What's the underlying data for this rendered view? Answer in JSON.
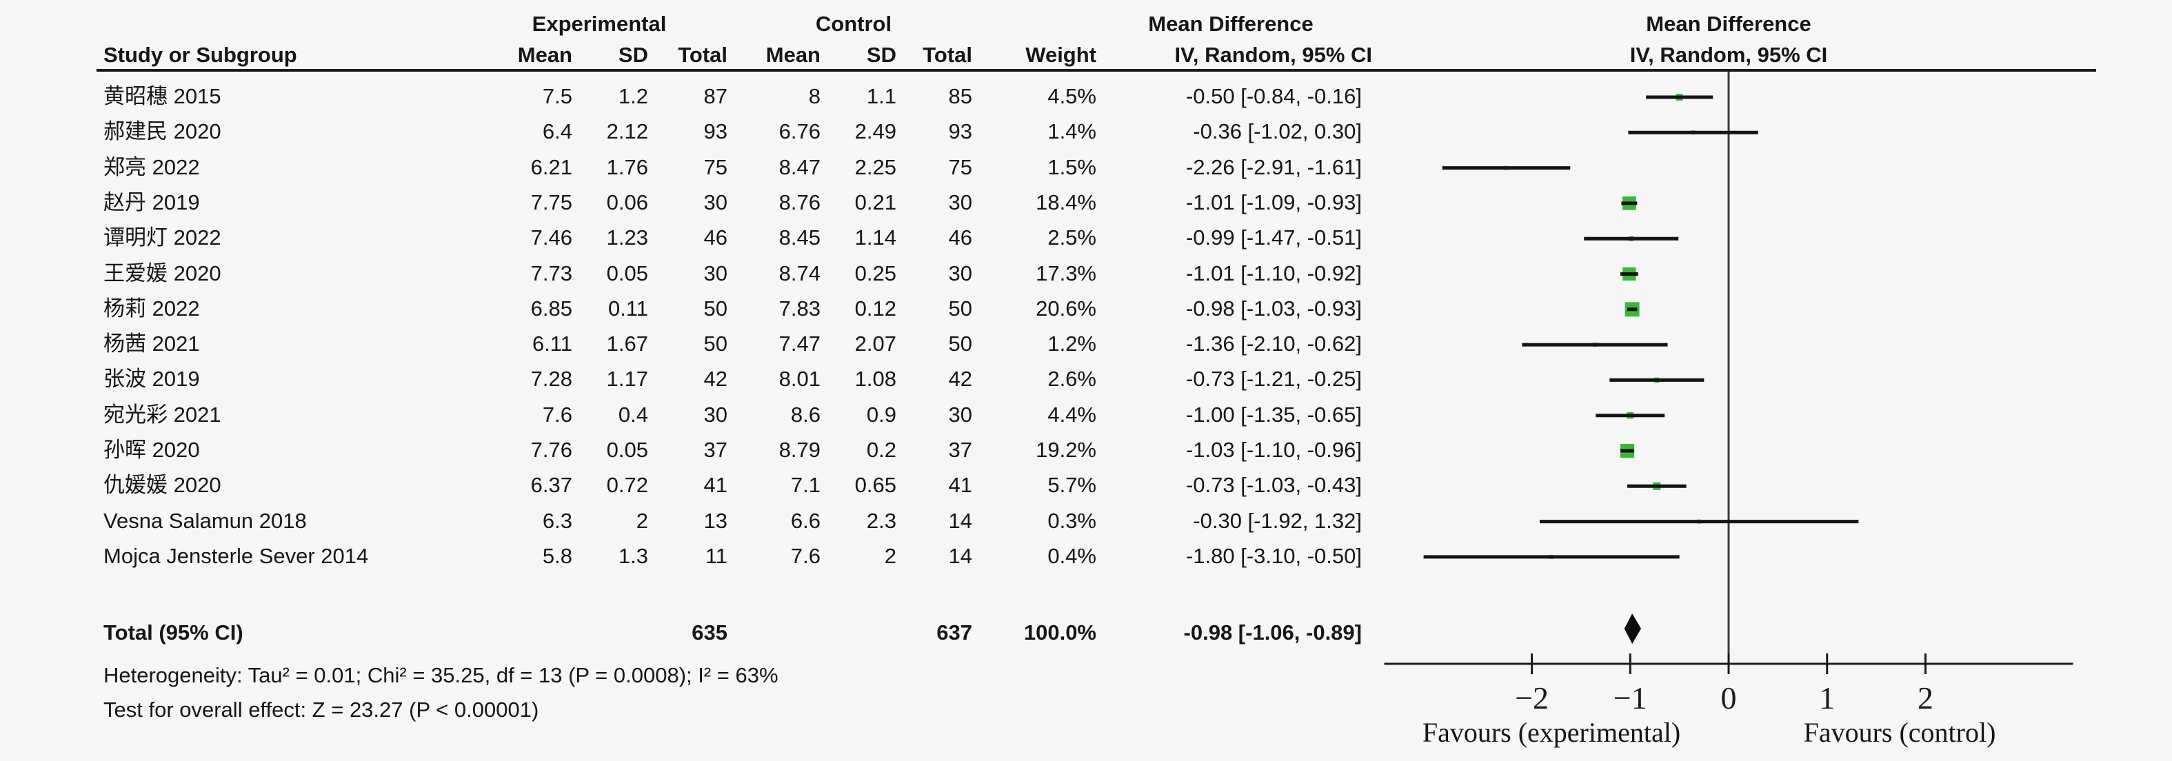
{
  "colors": {
    "background": "#f5f6f5",
    "marker_green": "#3CB53C",
    "marker_gray": "#8a8a8a",
    "ci_line": "#141414",
    "diamond": "#0d0d0d",
    "axis": "#1a1a1a"
  },
  "header": {
    "experimental": "Experimental",
    "control": "Control",
    "mean_difference_text_col": "Mean Difference",
    "mean_difference_plot_col": "Mean Difference",
    "study_or_subgroup": "Study or Subgroup",
    "mean": "Mean",
    "sd": "SD",
    "total": "Total",
    "mean2": "Mean",
    "sd2": "SD",
    "total2": "Total",
    "weight": "Weight",
    "ci_method_text_col": "IV, Random, 95% CI",
    "ci_method_plot_col": "IV, Random, 95% CI"
  },
  "rows": [
    {
      "study": "黄昭穗 2015",
      "exp_mean": "7.5",
      "exp_sd": "1.2",
      "exp_total": "87",
      "ctrl_mean": "8",
      "ctrl_sd": "1.1",
      "ctrl_total": "85",
      "weight": "4.5%",
      "ci_text": "-0.50 [-0.84, -0.16]",
      "est": -0.5,
      "lo": -0.84,
      "hi": -0.16,
      "w": 4.5
    },
    {
      "study": "郝建民 2020",
      "exp_mean": "6.4",
      "exp_sd": "2.12",
      "exp_total": "93",
      "ctrl_mean": "6.76",
      "ctrl_sd": "2.49",
      "ctrl_total": "93",
      "weight": "1.4%",
      "ci_text": "-0.36 [-1.02, 0.30]",
      "est": -0.36,
      "lo": -1.02,
      "hi": 0.3,
      "w": 1.4
    },
    {
      "study": "郑亮 2022",
      "exp_mean": "6.21",
      "exp_sd": "1.76",
      "exp_total": "75",
      "ctrl_mean": "8.47",
      "ctrl_sd": "2.25",
      "ctrl_total": "75",
      "weight": "1.5%",
      "ci_text": "-2.26 [-2.91, -1.61]",
      "est": -2.26,
      "lo": -2.91,
      "hi": -1.61,
      "w": 1.5
    },
    {
      "study": "赵丹 2019",
      "exp_mean": "7.75",
      "exp_sd": "0.06",
      "exp_total": "30",
      "ctrl_mean": "8.76",
      "ctrl_sd": "0.21",
      "ctrl_total": "30",
      "weight": "18.4%",
      "ci_text": "-1.01 [-1.09, -0.93]",
      "est": -1.01,
      "lo": -1.09,
      "hi": -0.93,
      "w": 18.4
    },
    {
      "study": "谭明灯 2022",
      "exp_mean": "7.46",
      "exp_sd": "1.23",
      "exp_total": "46",
      "ctrl_mean": "8.45",
      "ctrl_sd": "1.14",
      "ctrl_total": "46",
      "weight": "2.5%",
      "ci_text": "-0.99 [-1.47, -0.51]",
      "est": -0.99,
      "lo": -1.47,
      "hi": -0.51,
      "w": 2.5
    },
    {
      "study": "王爱媛 2020",
      "exp_mean": "7.73",
      "exp_sd": "0.05",
      "exp_total": "30",
      "ctrl_mean": "8.74",
      "ctrl_sd": "0.25",
      "ctrl_total": "30",
      "weight": "17.3%",
      "ci_text": "-1.01 [-1.10, -0.92]",
      "est": -1.01,
      "lo": -1.1,
      "hi": -0.92,
      "w": 17.3
    },
    {
      "study": "杨莉 2022",
      "exp_mean": "6.85",
      "exp_sd": "0.11",
      "exp_total": "50",
      "ctrl_mean": "7.83",
      "ctrl_sd": "0.12",
      "ctrl_total": "50",
      "weight": "20.6%",
      "ci_text": "-0.98 [-1.03, -0.93]",
      "est": -0.98,
      "lo": -1.03,
      "hi": -0.93,
      "w": 20.6
    },
    {
      "study": "杨茜 2021",
      "exp_mean": "6.11",
      "exp_sd": "1.67",
      "exp_total": "50",
      "ctrl_mean": "7.47",
      "ctrl_sd": "2.07",
      "ctrl_total": "50",
      "weight": "1.2%",
      "ci_text": "-1.36 [-2.10, -0.62]",
      "est": -1.36,
      "lo": -2.1,
      "hi": -0.62,
      "w": 1.2
    },
    {
      "study": "张波 2019",
      "exp_mean": "7.28",
      "exp_sd": "1.17",
      "exp_total": "42",
      "ctrl_mean": "8.01",
      "ctrl_sd": "1.08",
      "ctrl_total": "42",
      "weight": "2.6%",
      "ci_text": "-0.73 [-1.21, -0.25]",
      "est": -0.73,
      "lo": -1.21,
      "hi": -0.25,
      "w": 2.6
    },
    {
      "study": "宛光彩 2021",
      "exp_mean": "7.6",
      "exp_sd": "0.4",
      "exp_total": "30",
      "ctrl_mean": "8.6",
      "ctrl_sd": "0.9",
      "ctrl_total": "30",
      "weight": "4.4%",
      "ci_text": "-1.00 [-1.35, -0.65]",
      "est": -1.0,
      "lo": -1.35,
      "hi": -0.65,
      "w": 4.4
    },
    {
      "study": "孙晖 2020",
      "exp_mean": "7.76",
      "exp_sd": "0.05",
      "exp_total": "37",
      "ctrl_mean": "8.79",
      "ctrl_sd": "0.2",
      "ctrl_total": "37",
      "weight": "19.2%",
      "ci_text": "-1.03 [-1.10, -0.96]",
      "est": -1.03,
      "lo": -1.1,
      "hi": -0.96,
      "w": 19.2
    },
    {
      "study": "仇媛媛 2020",
      "exp_mean": "6.37",
      "exp_sd": "0.72",
      "exp_total": "41",
      "ctrl_mean": "7.1",
      "ctrl_sd": "0.65",
      "ctrl_total": "41",
      "weight": "5.7%",
      "ci_text": "-0.73 [-1.03, -0.43]",
      "est": -0.73,
      "lo": -1.03,
      "hi": -0.43,
      "w": 5.7
    },
    {
      "study": "Vesna Salamun 2018",
      "exp_mean": "6.3",
      "exp_sd": "2",
      "exp_total": "13",
      "ctrl_mean": "6.6",
      "ctrl_sd": "2.3",
      "ctrl_total": "14",
      "weight": "0.3%",
      "ci_text": "-0.30 [-1.92, 1.32]",
      "est": -0.3,
      "lo": -1.92,
      "hi": 1.32,
      "w": 0.3
    },
    {
      "study": "Mojca Jensterle Sever 2014",
      "exp_mean": "5.8",
      "exp_sd": "1.3",
      "exp_total": "11",
      "ctrl_mean": "7.6",
      "ctrl_sd": "2",
      "ctrl_total": "14",
      "weight": "0.4%",
      "ci_text": "-1.80 [-3.10, -0.50]",
      "est": -1.8,
      "lo": -3.1,
      "hi": -0.5,
      "w": 0.4
    }
  ],
  "total_row": {
    "label": "Total (95% CI)",
    "exp_total": "635",
    "ctrl_total": "637",
    "weight": "100.0%",
    "ci_text": "-0.98 [-1.06, -0.89]",
    "est": -0.98,
    "lo": -1.06,
    "hi": -0.89
  },
  "footer": {
    "heterogeneity": "Heterogeneity: Tau² = 0.01; Chi² = 35.25, df = 13 (P = 0.0008); I² = 63%",
    "overall_effect": "Test for overall effect: Z = 23.27 (P < 0.00001)"
  },
  "axis": {
    "tick_labels": [
      "−2",
      "−1",
      "0",
      "1",
      "2"
    ],
    "tick_values": [
      -2,
      -1,
      0,
      1,
      2
    ],
    "xlim": [
      -3.5,
      3.5
    ],
    "favours_left": "Favours (experimental)",
    "favours_right": "Favours (control)"
  },
  "chart_data": {
    "type": "scatter",
    "subtype": "forest_plot",
    "title": "Mean Difference",
    "model": "IV, Random, 95% CI",
    "studies": [
      "黄昭穗 2015",
      "郝建民 2020",
      "郑亮 2022",
      "赵丹 2019",
      "谭明灯 2022",
      "王爱媛 2020",
      "杨莉 2022",
      "杨茜 2021",
      "张波 2019",
      "宛光彩 2021",
      "孙晖 2020",
      "仇媛媛 2020",
      "Vesna Salamun 2018",
      "Mojca Jensterle Sever 2014"
    ],
    "mean_difference": [
      -0.5,
      -0.36,
      -2.26,
      -1.01,
      -0.99,
      -1.01,
      -0.98,
      -1.36,
      -0.73,
      -1.0,
      -1.03,
      -0.73,
      -0.3,
      -1.8
    ],
    "ci_low": [
      -0.84,
      -1.02,
      -2.91,
      -1.09,
      -1.47,
      -1.1,
      -1.03,
      -2.1,
      -1.21,
      -1.35,
      -1.1,
      -1.03,
      -1.92,
      -3.1
    ],
    "ci_high": [
      -0.16,
      0.3,
      -1.61,
      -0.93,
      -0.51,
      -0.92,
      -0.93,
      -0.62,
      -0.25,
      -0.65,
      -0.96,
      -0.43,
      1.32,
      -0.5
    ],
    "weights_pct": [
      4.5,
      1.4,
      1.5,
      18.4,
      2.5,
      17.3,
      20.6,
      1.2,
      2.6,
      4.4,
      19.2,
      5.7,
      0.3,
      0.4
    ],
    "experimental": {
      "mean": [
        7.5,
        6.4,
        6.21,
        7.75,
        7.46,
        7.73,
        6.85,
        6.11,
        7.28,
        7.6,
        7.76,
        6.37,
        6.3,
        5.8
      ],
      "sd": [
        1.2,
        2.12,
        1.76,
        0.06,
        1.23,
        0.05,
        0.11,
        1.67,
        1.17,
        0.4,
        0.05,
        0.72,
        2,
        1.3
      ],
      "total": [
        87,
        93,
        75,
        30,
        46,
        30,
        50,
        50,
        42,
        30,
        37,
        41,
        13,
        11
      ],
      "total_sum": 635
    },
    "control": {
      "mean": [
        8,
        6.76,
        8.47,
        8.76,
        8.45,
        8.74,
        7.83,
        7.47,
        8.01,
        8.6,
        8.79,
        7.1,
        6.6,
        7.6
      ],
      "sd": [
        1.1,
        2.49,
        2.25,
        0.21,
        1.14,
        0.25,
        0.12,
        2.07,
        1.08,
        0.9,
        0.2,
        0.65,
        2.3,
        2
      ],
      "total": [
        85,
        93,
        75,
        30,
        46,
        30,
        50,
        50,
        42,
        30,
        37,
        41,
        14,
        14
      ],
      "total_sum": 637
    },
    "summary": {
      "label": "Total (95% CI)",
      "md": -0.98,
      "ci": [
        -1.06,
        -0.89
      ],
      "weight_pct": 100.0
    },
    "heterogeneity": "Tau² = 0.01; Chi² = 35.25, df = 13 (P = 0.0008); I² = 63%",
    "test_overall": "Z = 23.27 (P < 0.00001)",
    "x_ticks": [
      -2,
      -1,
      0,
      1,
      2
    ],
    "xlim": [
      -3.5,
      3.5
    ],
    "xlabel_left": "Favours (experimental)",
    "xlabel_right": "Favours (control)",
    "grid": false,
    "legend_position": "none"
  }
}
